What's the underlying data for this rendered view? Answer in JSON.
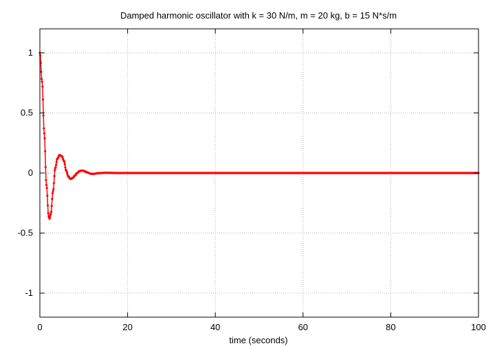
{
  "chart_data": {
    "type": "scatter",
    "title": "Damped harmonic oscillator with k = 30 N/m, m = 20 kg, b = 15 N*s/m",
    "xlabel": "time (seconds)",
    "ylabel": "",
    "xlim": [
      0,
      100
    ],
    "ylim": [
      -1.2,
      1.2
    ],
    "x_ticks": [
      0,
      20,
      40,
      60,
      80,
      100
    ],
    "y_ticks": [
      -1,
      -0.5,
      0,
      0.5,
      1
    ],
    "x_tick_labels": [
      "0",
      "20",
      "40",
      "60",
      "80",
      "100"
    ],
    "y_tick_labels": [
      "-1",
      "-0.5",
      "0",
      "0.5",
      "1"
    ],
    "grid": true,
    "legend": "none",
    "colors": {
      "series": "#ff0000",
      "grid": "#b4b4b4",
      "axes": "#000000"
    },
    "series": [
      {
        "x": [
          0,
          0.5,
          1,
          1.5,
          2,
          2.2,
          2.5,
          3,
          3.5,
          4,
          4.5,
          5,
          5.5,
          6,
          6.5,
          7,
          7.5,
          8,
          8.5,
          9,
          9.5,
          10,
          10.5,
          11,
          11.5,
          12,
          12.5,
          13,
          13.5,
          14,
          15,
          16,
          17,
          18,
          20,
          25,
          30,
          40,
          50,
          60,
          70,
          80,
          90,
          100
        ],
        "y": [
          1.0,
          0.76,
          0.33,
          -0.1,
          -0.36,
          -0.38,
          -0.34,
          -0.15,
          0.04,
          0.12,
          0.15,
          0.14,
          0.1,
          0.02,
          -0.03,
          -0.05,
          -0.04,
          -0.02,
          0.0,
          0.015,
          0.02,
          0.018,
          0.01,
          0.002,
          -0.005,
          -0.008,
          -0.006,
          -0.003,
          -0.001,
          0.0,
          0.002,
          0.001,
          0.0,
          0.0,
          0.0,
          0.0,
          0.0,
          0.0,
          0.0,
          0.0,
          0.0,
          0.0,
          0.0,
          0.0
        ]
      }
    ]
  }
}
